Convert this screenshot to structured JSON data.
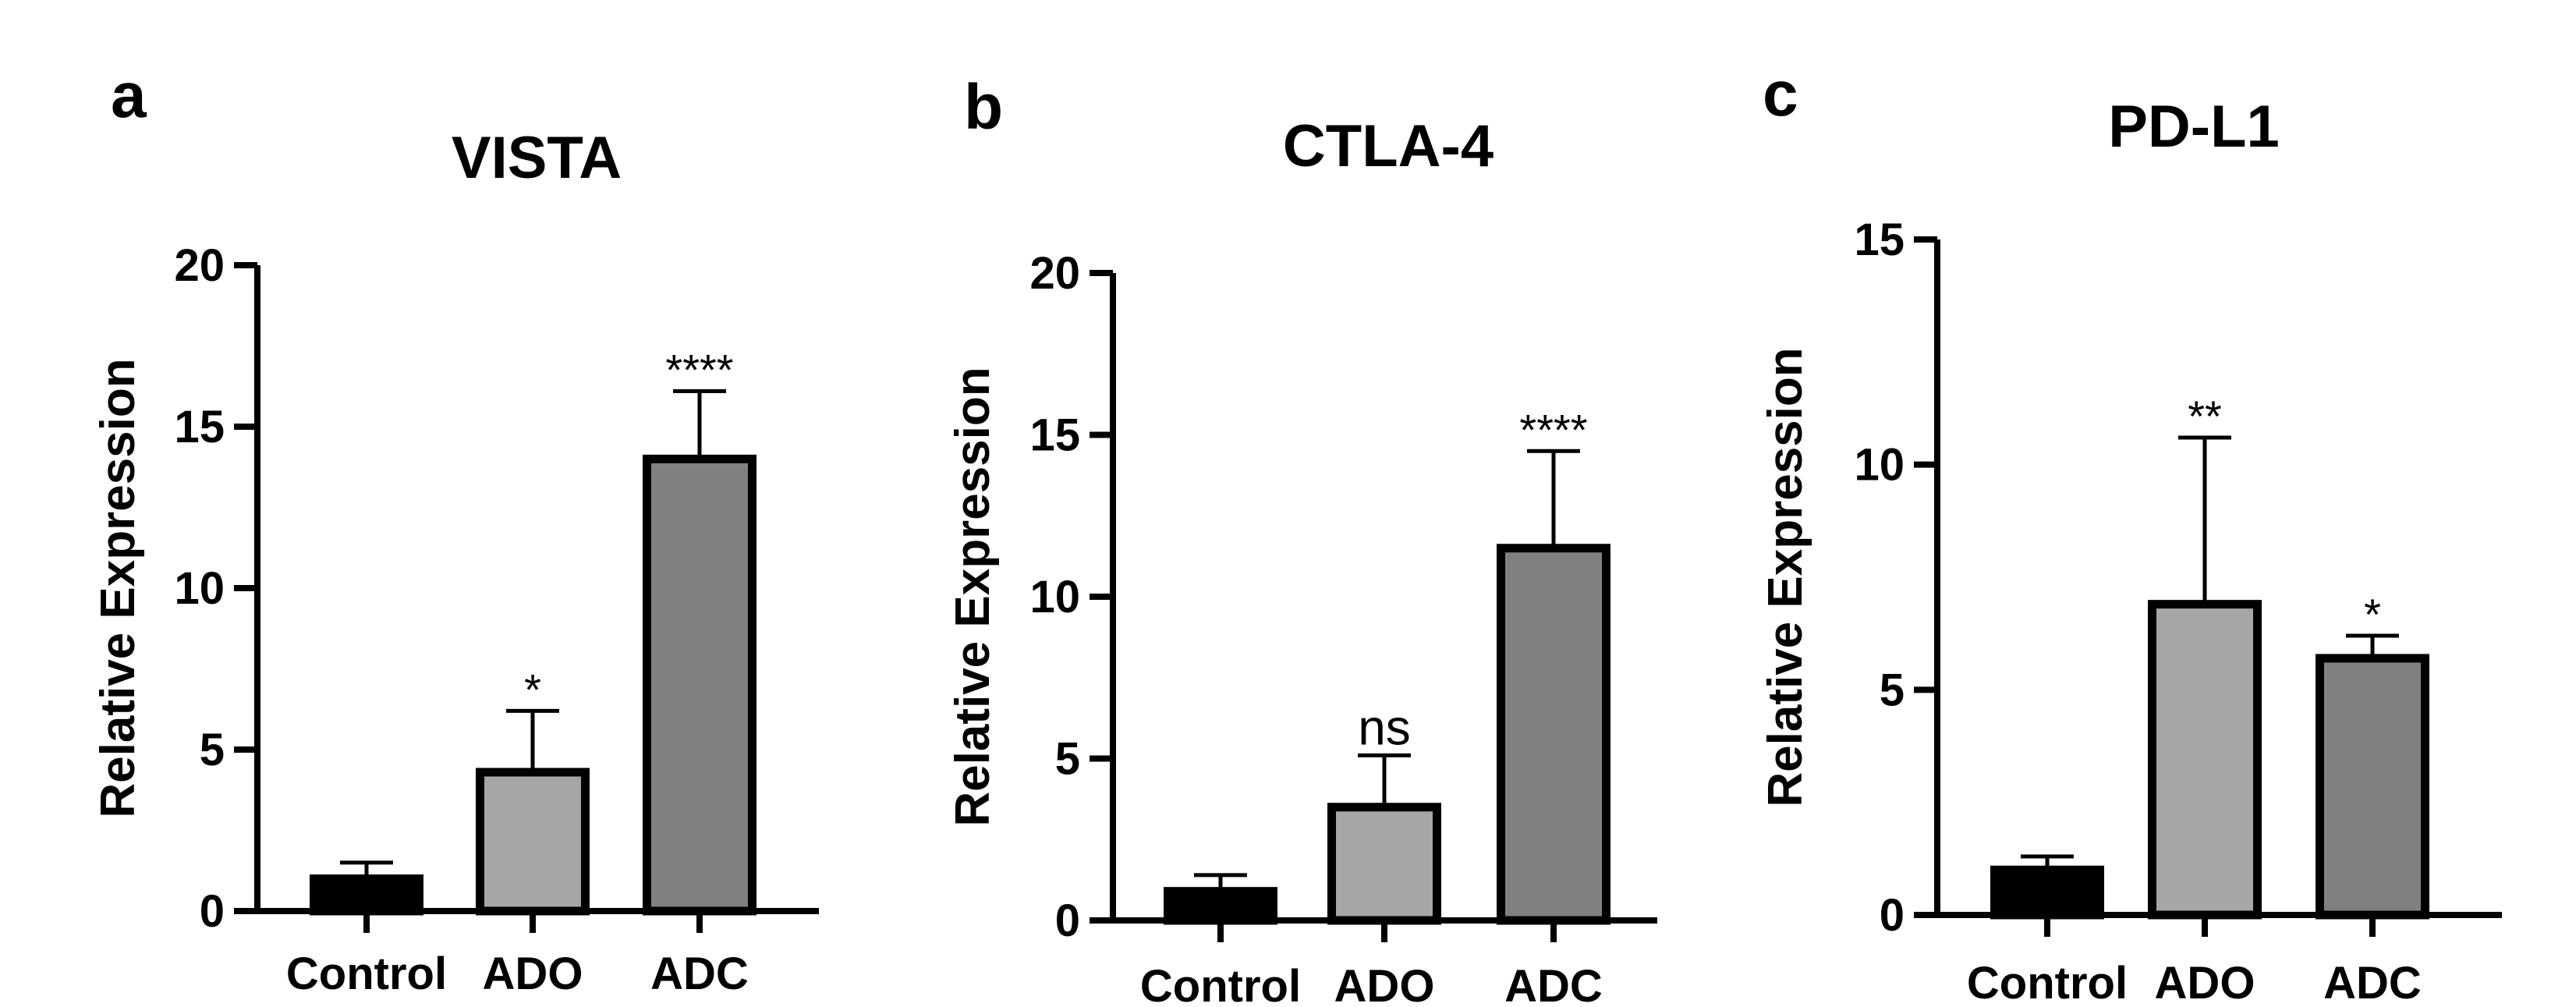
{
  "chart_data": [
    {
      "type": "bar",
      "panel": "a",
      "title": "VISTA",
      "ylabel": "Relative Expression",
      "xlabel": "",
      "ylim": [
        0,
        20
      ],
      "yticks": [
        0,
        5,
        10,
        15,
        20
      ],
      "categories": [
        "Control",
        "ADO",
        "ADC"
      ],
      "values": [
        1.0,
        4.3,
        14.0
      ],
      "errors": [
        0.5,
        1.9,
        2.1
      ],
      "significance": [
        "",
        "*",
        "****"
      ],
      "colors": [
        "#000000",
        "#a6a6a9",
        "#808080"
      ]
    },
    {
      "type": "bar",
      "panel": "b",
      "title": "CTLA-4",
      "ylabel": "Relative Expression",
      "xlabel": "",
      "ylim": [
        0,
        20
      ],
      "yticks": [
        0,
        5,
        10,
        15,
        20
      ],
      "categories": [
        "Control",
        "ADO",
        "ADC"
      ],
      "values": [
        0.9,
        3.5,
        11.5
      ],
      "errors": [
        0.5,
        1.6,
        3.0
      ],
      "significance": [
        "",
        "ns",
        "****"
      ],
      "colors": [
        "#000000",
        "#a6a6a9",
        "#808080"
      ]
    },
    {
      "type": "bar",
      "panel": "c",
      "title": "PD-L1",
      "ylabel": "Relative Expression",
      "xlabel": "",
      "ylim": [
        0,
        15
      ],
      "yticks": [
        0,
        5,
        10,
        15
      ],
      "categories": [
        "Control",
        "ADO",
        "ADC"
      ],
      "values": [
        1.0,
        6.9,
        5.7
      ],
      "errors": [
        0.3,
        3.7,
        0.5
      ],
      "significance": [
        "",
        "**",
        "*"
      ],
      "colors": [
        "#000000",
        "#a6a6a9",
        "#808080"
      ]
    }
  ]
}
